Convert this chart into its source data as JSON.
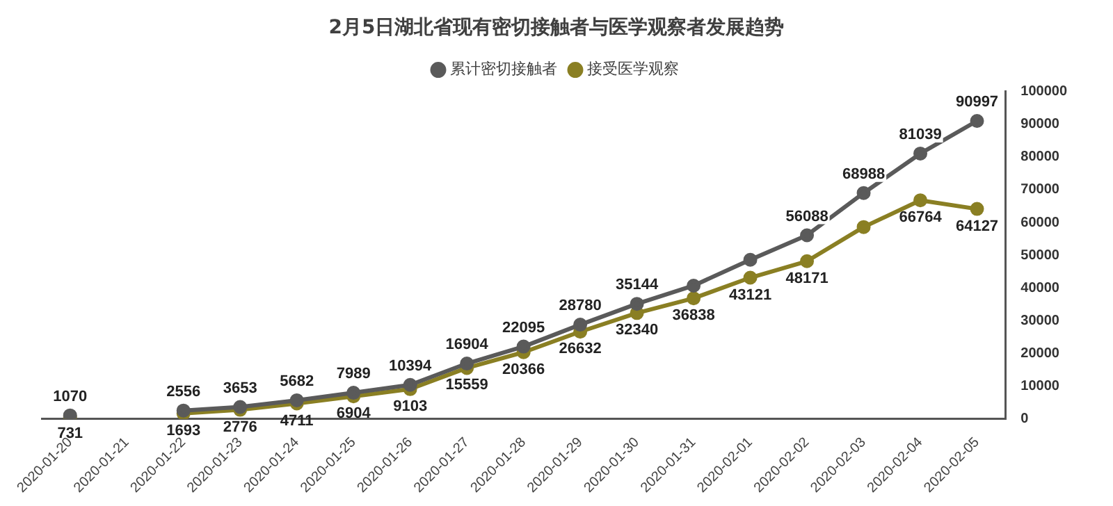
{
  "chart_data": {
    "type": "line",
    "title": "2月5日湖北省现有密切接触者与医学观察者发展趋势",
    "categories": [
      "2020-01-20",
      "2020-01-21",
      "2020-01-22",
      "2020-01-23",
      "2020-01-24",
      "2020-01-25",
      "2020-01-26",
      "2020-01-27",
      "2020-01-28",
      "2020-01-29",
      "2020-01-30",
      "2020-01-31",
      "2020-02-01",
      "2020-02-02",
      "2020-02-03",
      "2020-02-04",
      "2020-02-05"
    ],
    "series": [
      {
        "name": "接受医学观察",
        "color": "#8a7f23",
        "values": [
          731,
          null,
          1693,
          2776,
          4711,
          6904,
          9103,
          15559,
          20366,
          26632,
          32340,
          36838,
          43121,
          48171,
          58600,
          66764,
          64127
        ],
        "value_labels": [
          "731",
          null,
          "1693",
          "2776",
          "4711",
          "6904",
          "9103",
          "15559",
          "20366",
          "26632",
          "32340",
          "36838",
          "43121",
          "48171",
          null,
          "66764",
          "64127"
        ]
      },
      {
        "name": "累计密切接触者",
        "color": "#5a5a5a",
        "values": [
          1070,
          null,
          2556,
          3653,
          5682,
          7989,
          10394,
          16904,
          22095,
          28780,
          35144,
          40700,
          48600,
          56088,
          68988,
          81039,
          90997
        ],
        "value_labels": [
          "1070",
          null,
          "2556",
          "3653",
          "5682",
          "7989",
          "10394",
          "16904",
          "22095",
          "28780",
          "35144",
          null,
          null,
          "56088",
          "68988",
          "81039",
          "90997"
        ]
      }
    ],
    "ylim": [
      0,
      100000
    ],
    "yticks": [
      0,
      10000,
      20000,
      30000,
      40000,
      50000,
      60000,
      70000,
      80000,
      90000,
      100000
    ],
    "grid": false,
    "legend": "top",
    "marker": "circle",
    "line_style": "solid"
  }
}
